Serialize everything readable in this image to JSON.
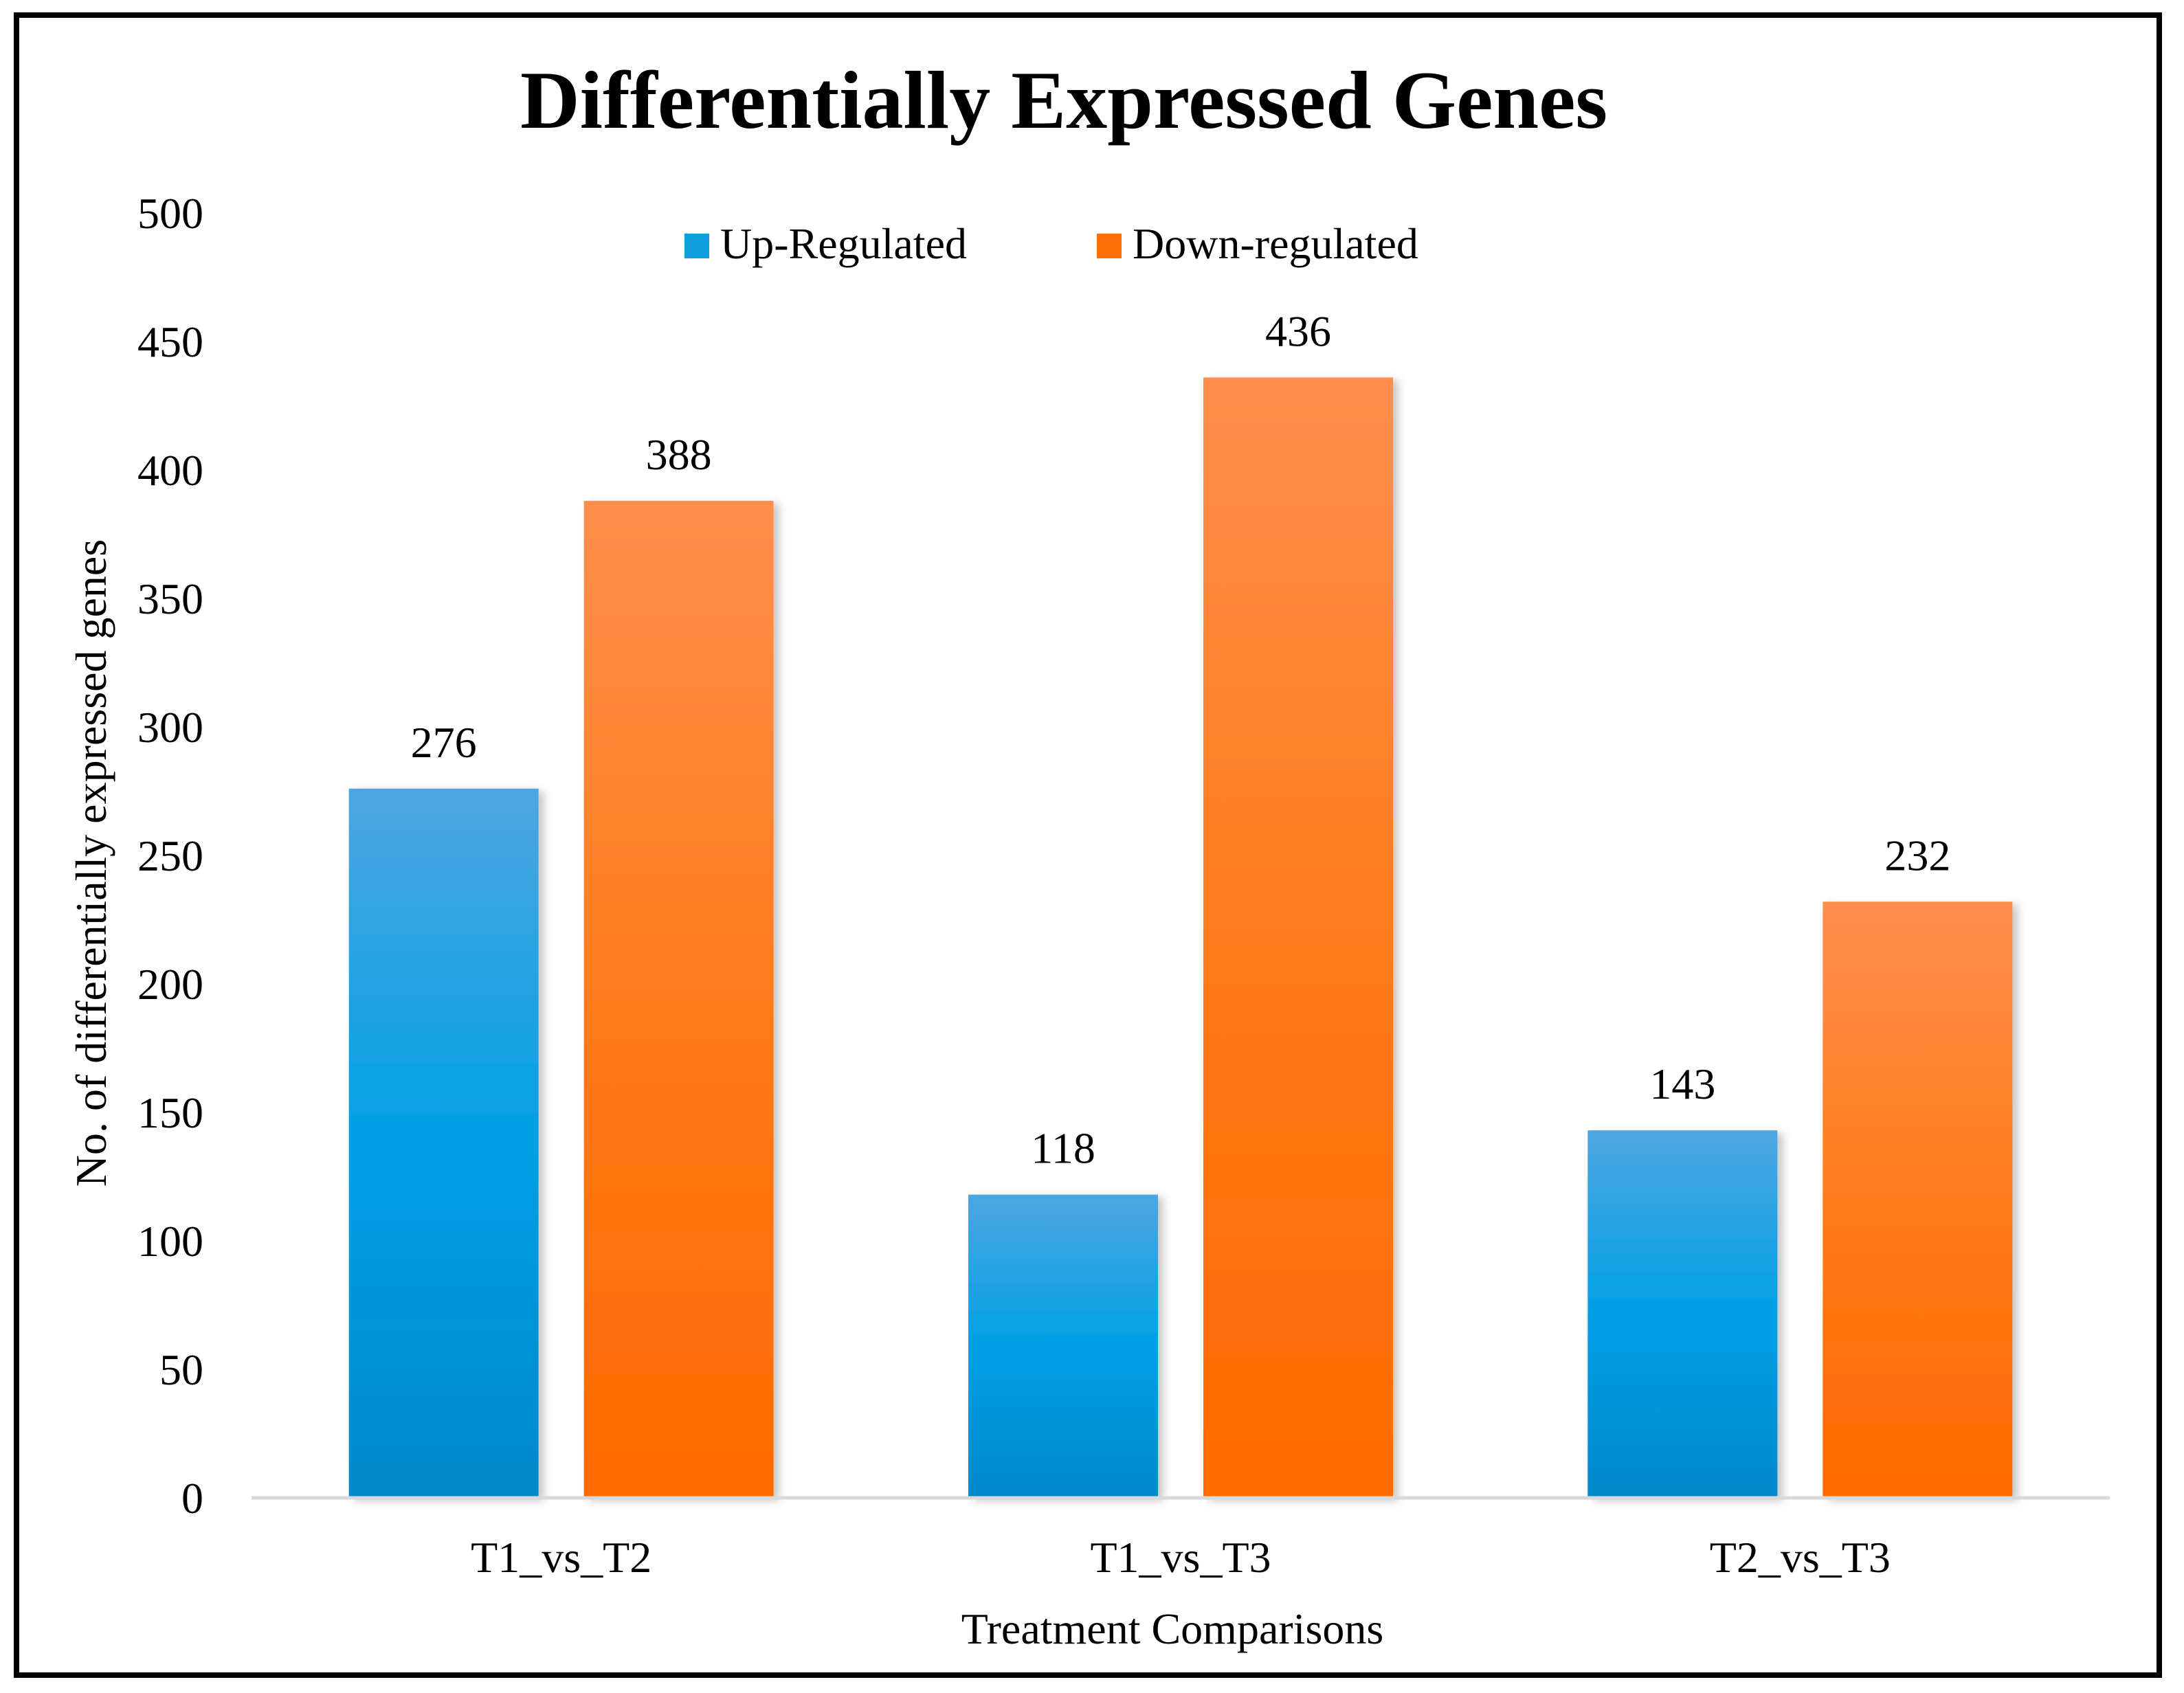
{
  "chart_data": {
    "type": "bar",
    "title": "Differentially Expressed Genes",
    "xlabel": "Treatment Comparisons",
    "ylabel": "No. of differentially expressed genes",
    "categories": [
      "T1_vs_T2",
      "T1_vs_T3",
      "T2_vs_T3"
    ],
    "series": [
      {
        "name": "Up-Regulated",
        "values": [
          276,
          118,
          143
        ],
        "color": "#0E9EE0"
      },
      {
        "name": "Down-regulated",
        "values": [
          388,
          436,
          232
        ],
        "color": "#FF6F0A"
      }
    ],
    "ylim": [
      0,
      500
    ],
    "yticks": [
      0,
      50,
      100,
      150,
      200,
      250,
      300,
      350,
      400,
      450,
      500
    ],
    "grid": false,
    "legend": "top-center"
  }
}
